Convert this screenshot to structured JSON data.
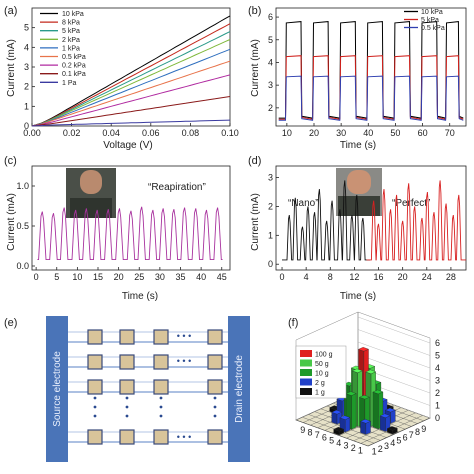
{
  "chart_data": [
    {
      "id": "a",
      "panel_label": "(a)",
      "type": "line",
      "xlabel": "Voltage (V)",
      "ylabel": "Current (mA)",
      "xlim": [
        0,
        0.1
      ],
      "ylim": [
        0,
        6
      ],
      "xticks": [
        "0.00",
        "0.02",
        "0.04",
        "0.06",
        "0.08",
        "0.10"
      ],
      "yticks": [
        "0",
        "1",
        "2",
        "3",
        "4",
        "5"
      ],
      "series": [
        {
          "name": "10 kPa",
          "color": "#000000",
          "x": [
            0,
            0.005,
            0.01,
            0.1
          ],
          "y": [
            0,
            0.15,
            0.4,
            5.6
          ]
        },
        {
          "name": "8 kPa",
          "color": "#c4281c",
          "x": [
            0,
            0.005,
            0.01,
            0.1
          ],
          "y": [
            0,
            0.14,
            0.37,
            5.2
          ]
        },
        {
          "name": "5 kPa",
          "color": "#2a9a8a",
          "x": [
            0,
            0.005,
            0.01,
            0.1
          ],
          "y": [
            0,
            0.13,
            0.35,
            4.8
          ]
        },
        {
          "name": "2 kPa",
          "color": "#7fb83a",
          "x": [
            0,
            0.005,
            0.01,
            0.1
          ],
          "y": [
            0,
            0.12,
            0.33,
            4.4
          ]
        },
        {
          "name": "1 kPa",
          "color": "#2f6fbf",
          "x": [
            0,
            0.005,
            0.01,
            0.1
          ],
          "y": [
            0,
            0.11,
            0.3,
            3.9
          ]
        },
        {
          "name": "0.5 kPa",
          "color": "#e8734a",
          "x": [
            0,
            0.005,
            0.01,
            0.1
          ],
          "y": [
            0,
            0.1,
            0.27,
            3.3
          ]
        },
        {
          "name": "0.2 kPa",
          "color": "#b02aa0",
          "x": [
            0,
            0.005,
            0.01,
            0.1
          ],
          "y": [
            0,
            0.08,
            0.2,
            2.6
          ]
        },
        {
          "name": "0.1 kPa",
          "color": "#8a1a1a",
          "x": [
            0,
            0.005,
            0.01,
            0.1
          ],
          "y": [
            0,
            0.06,
            0.12,
            1.5
          ]
        },
        {
          "name": "1 Pa",
          "color": "#3a3aa0",
          "x": [
            0,
            0.005,
            0.01,
            0.1
          ],
          "y": [
            0,
            0.02,
            0.05,
            0.3
          ]
        }
      ]
    },
    {
      "id": "b",
      "panel_label": "(b)",
      "type": "line",
      "xlabel": "Time (s)",
      "ylabel": "Current (mA)",
      "xlim": [
        6,
        76
      ],
      "ylim": [
        1.2,
        6.4
      ],
      "xticks": [
        "10",
        "20",
        "30",
        "40",
        "50",
        "60",
        "70"
      ],
      "yticks": [
        "2",
        "3",
        "4",
        "5",
        "6"
      ],
      "pulses": [
        [
          9.5,
          15.5
        ],
        [
          19.5,
          25.5
        ],
        [
          29.5,
          35.5
        ],
        [
          39.5,
          45.5
        ],
        [
          49.5,
          55.5
        ],
        [
          59.5,
          65.5
        ],
        [
          68.5,
          73.5
        ]
      ],
      "series": [
        {
          "name": "10 kPa",
          "color": "#000000",
          "base": 1.55,
          "level": 5.8
        },
        {
          "name": "5 kPa",
          "color": "#d0201c",
          "base": 1.5,
          "level": 4.3
        },
        {
          "name": "0.5 kPa",
          "color": "#2f3fb0",
          "base": 1.45,
          "level": 3.4
        }
      ]
    },
    {
      "id": "c",
      "panel_label": "(c)",
      "type": "line",
      "xlabel": "Time (s)",
      "ylabel": "Current (mA)",
      "annotation": "“Reapiration”",
      "xlim": [
        -1,
        47
      ],
      "ylim": [
        -0.05,
        1.25
      ],
      "xticks": [
        "0",
        "5",
        "10",
        "15",
        "20",
        "25",
        "30",
        "35",
        "40",
        "45"
      ],
      "yticks": [
        "0.0",
        "0.5",
        "1.0"
      ],
      "series": [
        {
          "color": "#a8329e",
          "base": 0.08,
          "peaks": [
            [
              1.5,
              0.68
            ],
            [
              4.2,
              0.66
            ],
            [
              6.8,
              0.73
            ],
            [
              9.6,
              0.7
            ],
            [
              12.2,
              0.72
            ],
            [
              14.8,
              0.7
            ],
            [
              17.5,
              0.71
            ],
            [
              20.2,
              0.72
            ],
            [
              23.0,
              0.69
            ],
            [
              25.6,
              0.74
            ],
            [
              28.3,
              0.7
            ],
            [
              30.8,
              0.72
            ],
            [
              33.4,
              0.71
            ],
            [
              36.0,
              0.73
            ],
            [
              38.7,
              0.72
            ],
            [
              41.3,
              0.7
            ],
            [
              44.0,
              0.73
            ]
          ]
        }
      ]
    },
    {
      "id": "d",
      "panel_label": "(d)",
      "type": "line",
      "xlabel": "Time (s)",
      "ylabel": "Current (mA)",
      "annotations": [
        "“Nano”",
        "“Perfect”"
      ],
      "xlim": [
        -1,
        30.5
      ],
      "ylim": [
        -0.2,
        3.4
      ],
      "xticks": [
        "0",
        "4",
        "8",
        "12",
        "16",
        "20",
        "24",
        "28"
      ],
      "yticks": [
        "0",
        "1",
        "2",
        "3"
      ],
      "series": [
        {
          "color": "#111111",
          "base": 0.15,
          "peaks": [
            [
              1.2,
              1.7
            ],
            [
              2.2,
              2.3
            ],
            [
              3.4,
              1.3
            ],
            [
              4.3,
              2.0
            ],
            [
              5.4,
              1.8
            ],
            [
              6.2,
              2.6
            ],
            [
              7.4,
              1.5
            ],
            [
              8.3,
              2.2
            ],
            [
              9.6,
              1.9
            ],
            [
              10.4,
              2.9
            ],
            [
              11.6,
              1.7
            ],
            [
              12.4,
              2.4
            ],
            [
              13.4,
              1.6
            ]
          ]
        },
        {
          "color": "#d82020",
          "base": 0.15,
          "peaks": [
            [
              15.2,
              2.2
            ],
            [
              16.0,
              1.4
            ],
            [
              16.9,
              2.6
            ],
            [
              18.0,
              1.9
            ],
            [
              19.0,
              2.4
            ],
            [
              20.0,
              1.5
            ],
            [
              21.0,
              2.8
            ],
            [
              22.0,
              2.0
            ],
            [
              23.2,
              1.6
            ],
            [
              24.1,
              2.5
            ],
            [
              25.2,
              1.8
            ],
            [
              26.2,
              2.9
            ],
            [
              27.2,
              2.1
            ],
            [
              28.4,
              1.7
            ],
            [
              29.3,
              2.4
            ]
          ]
        }
      ]
    },
    {
      "id": "e",
      "panel_label": "(e)",
      "type": "diagram",
      "left_label": "Source electrode",
      "right_label": "Drain electrode",
      "dots": [
        "• • •",
        "•",
        "•",
        "•"
      ]
    },
    {
      "id": "f",
      "panel_label": "(f)",
      "type": "bar3d",
      "zticks": [
        "0",
        "1",
        "2",
        "3",
        "4",
        "5",
        "6"
      ],
      "xticks": [
        "1",
        "2",
        "3",
        "4",
        "5",
        "6",
        "7",
        "8",
        "9"
      ],
      "yticks": [
        "1",
        "2",
        "3",
        "4",
        "5",
        "6",
        "7",
        "8",
        "9"
      ],
      "legend": [
        {
          "name": "100 g",
          "color": "#e02020"
        },
        {
          "name": "50 g",
          "color": "#48c848"
        },
        {
          "name": "10 g",
          "color": "#1e9a2a"
        },
        {
          "name": "2 g",
          "color": "#2040c8"
        },
        {
          "name": "1 g",
          "color": "#111111"
        }
      ],
      "bars": [
        {
          "i": 5,
          "j": 5,
          "value": 5.8,
          "color": "#e02020"
        },
        {
          "i": 4,
          "j": 5,
          "value": 4.2,
          "color": "#48c848"
        },
        {
          "i": 5,
          "j": 4,
          "value": 4.3,
          "color": "#48c848"
        },
        {
          "i": 6,
          "j": 5,
          "value": 4.1,
          "color": "#48c848"
        },
        {
          "i": 5,
          "j": 6,
          "value": 4.2,
          "color": "#48c848"
        },
        {
          "i": 3,
          "j": 5,
          "value": 2.8,
          "color": "#1e9a2a"
        },
        {
          "i": 5,
          "j": 3,
          "value": 2.7,
          "color": "#1e9a2a"
        },
        {
          "i": 7,
          "j": 5,
          "value": 2.6,
          "color": "#1e9a2a"
        },
        {
          "i": 5,
          "j": 7,
          "value": 2.7,
          "color": "#1e9a2a"
        },
        {
          "i": 4,
          "j": 4,
          "value": 2.4,
          "color": "#1e9a2a"
        },
        {
          "i": 6,
          "j": 6,
          "value": 2.5,
          "color": "#1e9a2a"
        },
        {
          "i": 2,
          "j": 5,
          "value": 1.1,
          "color": "#2040c8"
        },
        {
          "i": 8,
          "j": 5,
          "value": 1.2,
          "color": "#2040c8"
        },
        {
          "i": 5,
          "j": 2,
          "value": 1.0,
          "color": "#2040c8"
        },
        {
          "i": 5,
          "j": 8,
          "value": 1.1,
          "color": "#2040c8"
        },
        {
          "i": 3,
          "j": 3,
          "value": 0.9,
          "color": "#2040c8"
        },
        {
          "i": 7,
          "j": 7,
          "value": 1.0,
          "color": "#2040c8"
        },
        {
          "i": 3,
          "j": 7,
          "value": 0.9,
          "color": "#2040c8"
        },
        {
          "i": 7,
          "j": 3,
          "value": 0.8,
          "color": "#2040c8"
        },
        {
          "i": 1,
          "j": 5,
          "value": 0.3,
          "color": "#111111"
        },
        {
          "i": 9,
          "j": 5,
          "value": 0.3,
          "color": "#111111"
        },
        {
          "i": 5,
          "j": 1,
          "value": 0.3,
          "color": "#111111"
        },
        {
          "i": 5,
          "j": 9,
          "value": 0.3,
          "color": "#111111"
        }
      ]
    }
  ]
}
